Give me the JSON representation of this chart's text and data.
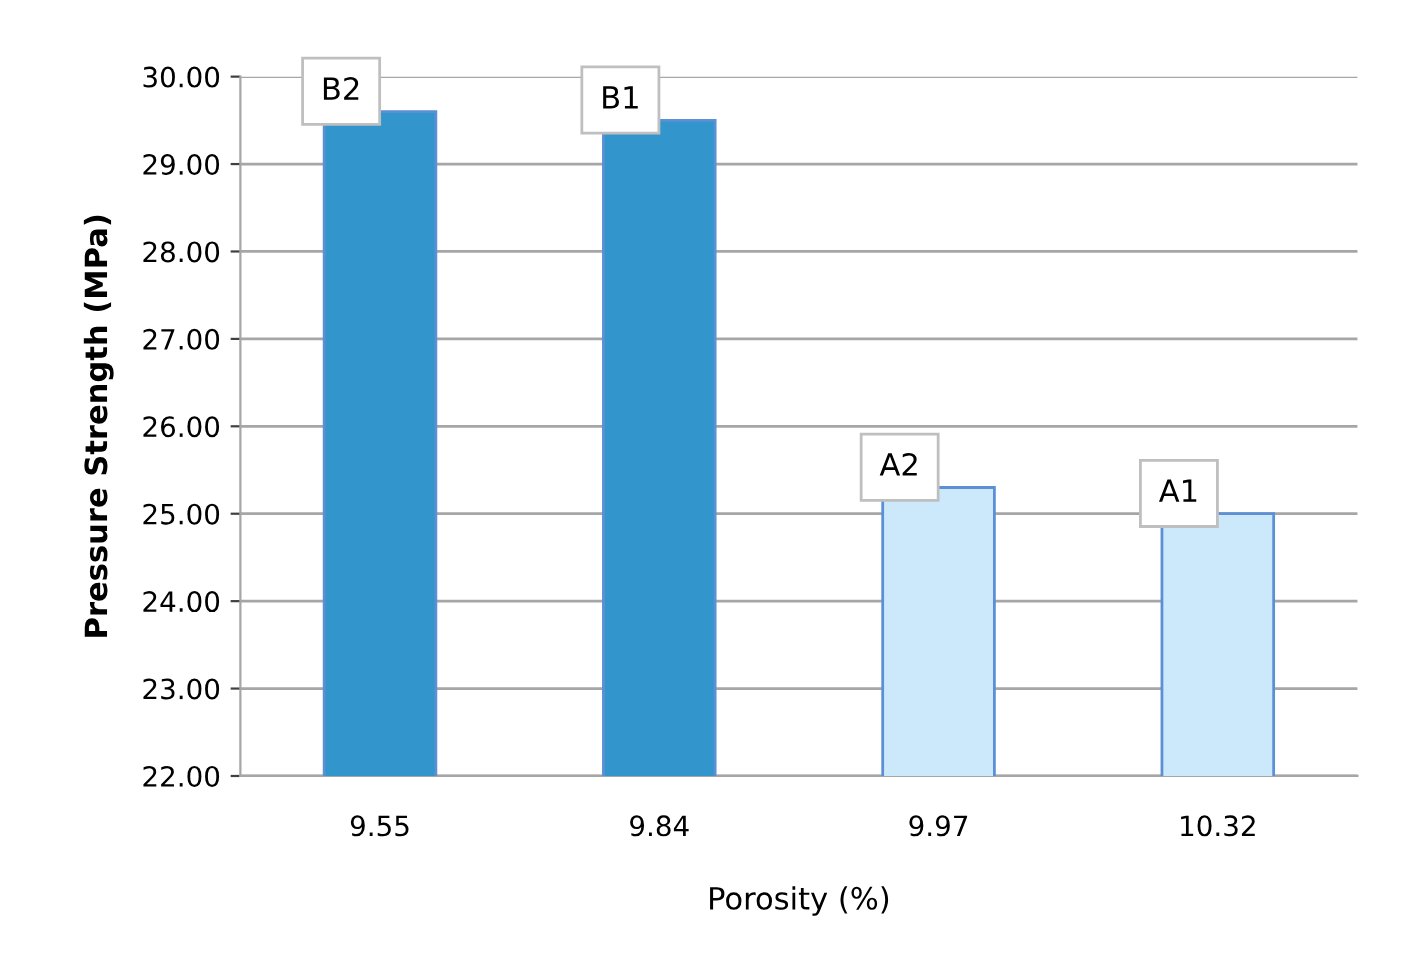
{
  "chart_data": {
    "type": "bar",
    "xlabel": "Porosity (%)",
    "ylabel": "Pressure Strength (MPa)",
    "categories": [
      "9.55",
      "9.84",
      "9.97",
      "10.32"
    ],
    "values": [
      29.6,
      29.5,
      25.3,
      25.0
    ],
    "colors": [
      "#3296cc",
      "#3296cc",
      "#cce9fb",
      "#cce9fb"
    ],
    "ylim": [
      22,
      30
    ],
    "yticks": [
      {
        "value": 22,
        "label": "22.00"
      },
      {
        "value": 23,
        "label": "23.00"
      },
      {
        "value": 24,
        "label": "24.00"
      },
      {
        "value": 25,
        "label": "25.00"
      },
      {
        "value": 26,
        "label": "26.00"
      },
      {
        "value": 27,
        "label": "27.00"
      },
      {
        "value": 28,
        "label": "28.00"
      },
      {
        "value": 29,
        "label": "29.00"
      },
      {
        "value": 30,
        "label": "30.00"
      }
    ],
    "grid": "y",
    "annotations": [
      {
        "text": "B2",
        "x": "9.55",
        "y": 29.6
      },
      {
        "text": "B1",
        "x": "9.84",
        "y": 29.5
      },
      {
        "text": "A2",
        "x": "9.97",
        "y": 25.3
      },
      {
        "text": "A1",
        "x": "10.32",
        "y": 25.0
      }
    ]
  }
}
